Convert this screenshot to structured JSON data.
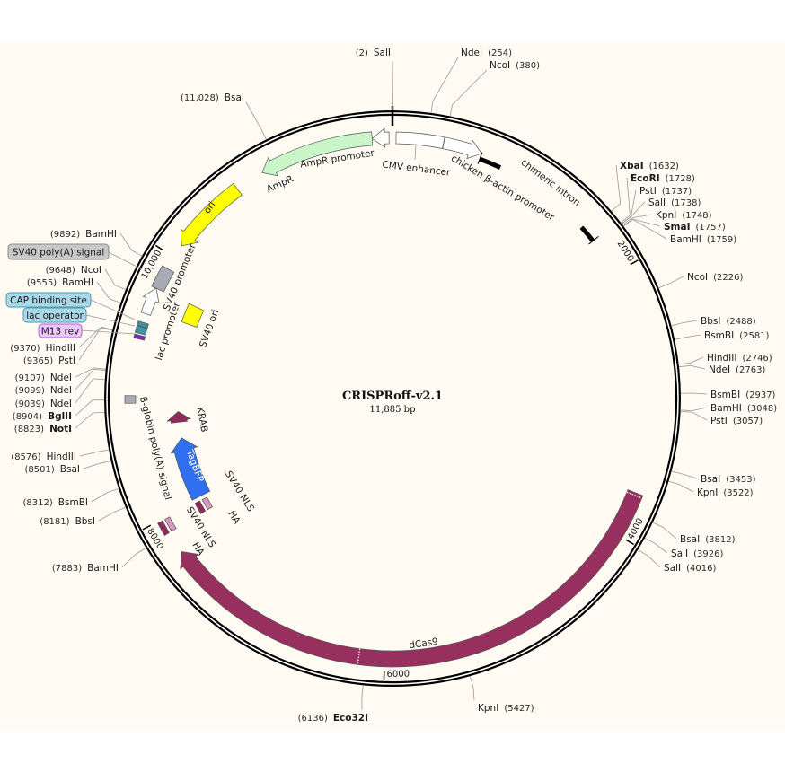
{
  "map": {
    "title": "CRISPRoff-v2.1",
    "length_label": "11,885 bp",
    "total_bp": 11885
  },
  "ticks": [
    {
      "bp": 2000,
      "label": "2000"
    },
    {
      "bp": 4000,
      "label": "4000"
    },
    {
      "bp": 6000,
      "label": "6000"
    },
    {
      "bp": 8000,
      "label": "8000"
    },
    {
      "bp": 10000,
      "label": "10,000"
    }
  ],
  "sites": [
    {
      "name": "SalI",
      "pos": "(2)",
      "bp": 2,
      "bold": false
    },
    {
      "name": "NdeI",
      "pos": "(254)",
      "bp": 254,
      "bold": false
    },
    {
      "name": "NcoI",
      "pos": "(380)",
      "bp": 380,
      "bold": false
    },
    {
      "name": "XbaI",
      "pos": "(1632)",
      "bp": 1632,
      "bold": true
    },
    {
      "name": "EcoRI",
      "pos": "(1728)",
      "bp": 1728,
      "bold": true
    },
    {
      "name": "PstI",
      "pos": "(1737)",
      "bp": 1737,
      "bold": false
    },
    {
      "name": "SalI",
      "pos": "(1738)",
      "bp": 1738,
      "bold": false
    },
    {
      "name": "KpnI",
      "pos": "(1748)",
      "bp": 1748,
      "bold": false
    },
    {
      "name": "SmaI",
      "pos": "(1757)",
      "bp": 1757,
      "bold": true
    },
    {
      "name": "BamHI",
      "pos": "(1759)",
      "bp": 1759,
      "bold": false
    },
    {
      "name": "NcoI",
      "pos": "(2226)",
      "bp": 2226,
      "bold": false
    },
    {
      "name": "BbsI",
      "pos": "(2488)",
      "bp": 2488,
      "bold": false
    },
    {
      "name": "BsmBI",
      "pos": "(2581)",
      "bp": 2581,
      "bold": false
    },
    {
      "name": "HindIII",
      "pos": "(2746)",
      "bp": 2746,
      "bold": false
    },
    {
      "name": "NdeI",
      "pos": "(2763)",
      "bp": 2763,
      "bold": false
    },
    {
      "name": "BsmBI",
      "pos": "(2937)",
      "bp": 2937,
      "bold": false
    },
    {
      "name": "BamHI",
      "pos": "(3048)",
      "bp": 3048,
      "bold": false
    },
    {
      "name": "PstI",
      "pos": "(3057)",
      "bp": 3057,
      "bold": false
    },
    {
      "name": "BsaI",
      "pos": "(3453)",
      "bp": 3453,
      "bold": false
    },
    {
      "name": "KpnI",
      "pos": "(3522)",
      "bp": 3522,
      "bold": false
    },
    {
      "name": "BsaI",
      "pos": "(3812)",
      "bp": 3812,
      "bold": false
    },
    {
      "name": "SalI",
      "pos": "(3926)",
      "bp": 3926,
      "bold": false
    },
    {
      "name": "SalI",
      "pos": "(4016)",
      "bp": 4016,
      "bold": false
    },
    {
      "name": "KpnI",
      "pos": "(5427)",
      "bp": 5427,
      "bold": false
    },
    {
      "name": "Eco32I",
      "pos": "(6136)",
      "bp": 6136,
      "bold": true
    },
    {
      "name": "BamHI",
      "pos": "(7883)",
      "bp": 7883,
      "bold": false
    },
    {
      "name": "BbsI",
      "pos": "(8181)",
      "bp": 8181,
      "bold": false
    },
    {
      "name": "BsmBI",
      "pos": "(8312)",
      "bp": 8312,
      "bold": false
    },
    {
      "name": "BsaI",
      "pos": "(8501)",
      "bp": 8501,
      "bold": false
    },
    {
      "name": "HindIII",
      "pos": "(8576)",
      "bp": 8576,
      "bold": false
    },
    {
      "name": "NotI",
      "pos": "(8823)",
      "bp": 8823,
      "bold": true
    },
    {
      "name": "BglII",
      "pos": "(8904)",
      "bp": 8904,
      "bold": true
    },
    {
      "name": "NdeI",
      "pos": "(9039)",
      "bp": 9039,
      "bold": false
    },
    {
      "name": "NdeI",
      "pos": "(9099)",
      "bp": 9099,
      "bold": false
    },
    {
      "name": "NdeI",
      "pos": "(9107)",
      "bp": 9107,
      "bold": false
    },
    {
      "name": "PstI",
      "pos": "(9365)",
      "bp": 9365,
      "bold": false
    },
    {
      "name": "HindIII",
      "pos": "(9370)",
      "bp": 9370,
      "bold": false
    },
    {
      "name": "BamHI",
      "pos": "(9555)",
      "bp": 9555,
      "bold": false
    },
    {
      "name": "NcoI",
      "pos": "(9648)",
      "bp": 9648,
      "bold": false
    },
    {
      "name": "BamHI",
      "pos": "(9892)",
      "bp": 9892,
      "bold": false
    },
    {
      "name": "BsaI",
      "pos": "(11,028)",
      "bp": 11028,
      "bold": false
    }
  ],
  "features": {
    "cmv_enhancer": {
      "name": "CMV enhancer",
      "start": 26,
      "end": 373,
      "color": "#ffffff",
      "direction": "none"
    },
    "cba_promoter": {
      "name": "chicken β-actin promoter",
      "start": 373,
      "end": 660,
      "color": "#ffffff",
      "direction": "forward"
    },
    "chimeric_intron": {
      "name": "chimeric intron",
      "start": 660,
      "end": 1710,
      "color": "#000000",
      "direction": "none"
    },
    "ampr_promoter": {
      "name": "AmpR promoter",
      "start": 11737,
      "end": 11860,
      "color": "#ffffff",
      "direction": "reverse"
    },
    "ampr": {
      "name": "AmpR",
      "start": 10895,
      "end": 11737,
      "color": "#c9f5c9",
      "direction": "reverse"
    },
    "ori": {
      "name": "ori",
      "start": 10100,
      "end": 10680,
      "color": "#ffff00",
      "direction": "reverse"
    },
    "sv40_promoter": {
      "name": "SV40 promoter",
      "start": 9740,
      "end": 9905,
      "color": "#a8abb3",
      "direction": "none"
    },
    "lac_promoter": {
      "name": "lac promoter",
      "start": 9540,
      "end": 9740,
      "color": "#ffffff",
      "direction": "forward"
    },
    "sv40_ori": {
      "name": "SV40 ori",
      "start": 9575,
      "end": 9740,
      "color": "#ffff00",
      "direction": "none"
    },
    "cap_binding_site": {
      "name": "CAP binding site",
      "start": 9445,
      "end": 9475,
      "color": "#3e93a8",
      "direction": "none"
    },
    "lac_operator": {
      "name": "lac operator",
      "start": 9390,
      "end": 9440,
      "color": "#3e93a8",
      "direction": "none"
    },
    "m13_rev": {
      "name": "M13 rev",
      "start": 9350,
      "end": 9378,
      "color": "#7a2bb5",
      "direction": "none"
    },
    "beta_globin_polya": {
      "name": "β-globin poly(A) signal",
      "start": 8880,
      "end": 8935,
      "color": "#a8abb3",
      "direction": "none"
    },
    "krab": {
      "name": "KRAB",
      "start": 8705,
      "end": 8800,
      "color": "#8e2a5c",
      "direction": "forward"
    },
    "tagbfp": {
      "name": "TagBFP",
      "start": 8025,
      "end": 8565,
      "color": "#2f6ff0",
      "direction": "forward"
    },
    "sv40_nls_1": {
      "name": "SV40 NLS",
      "start": 7890,
      "end": 7990,
      "color": "#8e2a5c",
      "direction": "none"
    },
    "ha_1": {
      "name": "HA",
      "start": 7890,
      "end": 7990,
      "color": "#d89ac0",
      "direction": "none"
    },
    "sv40_nls_2": {
      "name": "SV40 NLS",
      "start": 7890,
      "end": 7990,
      "color": "#8e2a5c",
      "direction": "none"
    },
    "ha_2": {
      "name": "HA",
      "start": 7890,
      "end": 7990,
      "color": "#d89ac0",
      "direction": "none"
    },
    "dcas9": {
      "name": "dCas9",
      "start": 3671,
      "end": 7725,
      "color": "#98305f",
      "direction": "forward"
    }
  },
  "boxed_labels": {
    "sv40_polya": {
      "text": "SV40 poly(A) signal",
      "fill": "#c8c8c8",
      "border": "#8a8a8a"
    },
    "cap": {
      "text": "CAP binding site",
      "fill": "#a9d9e6",
      "border": "#4a9bb0"
    },
    "lac_op": {
      "text": "lac operator",
      "fill": "#a9d9e6",
      "border": "#4a9bb0"
    },
    "m13": {
      "text": "M13 rev",
      "fill": "#ecc8fb",
      "border": "#b25cd8"
    }
  }
}
